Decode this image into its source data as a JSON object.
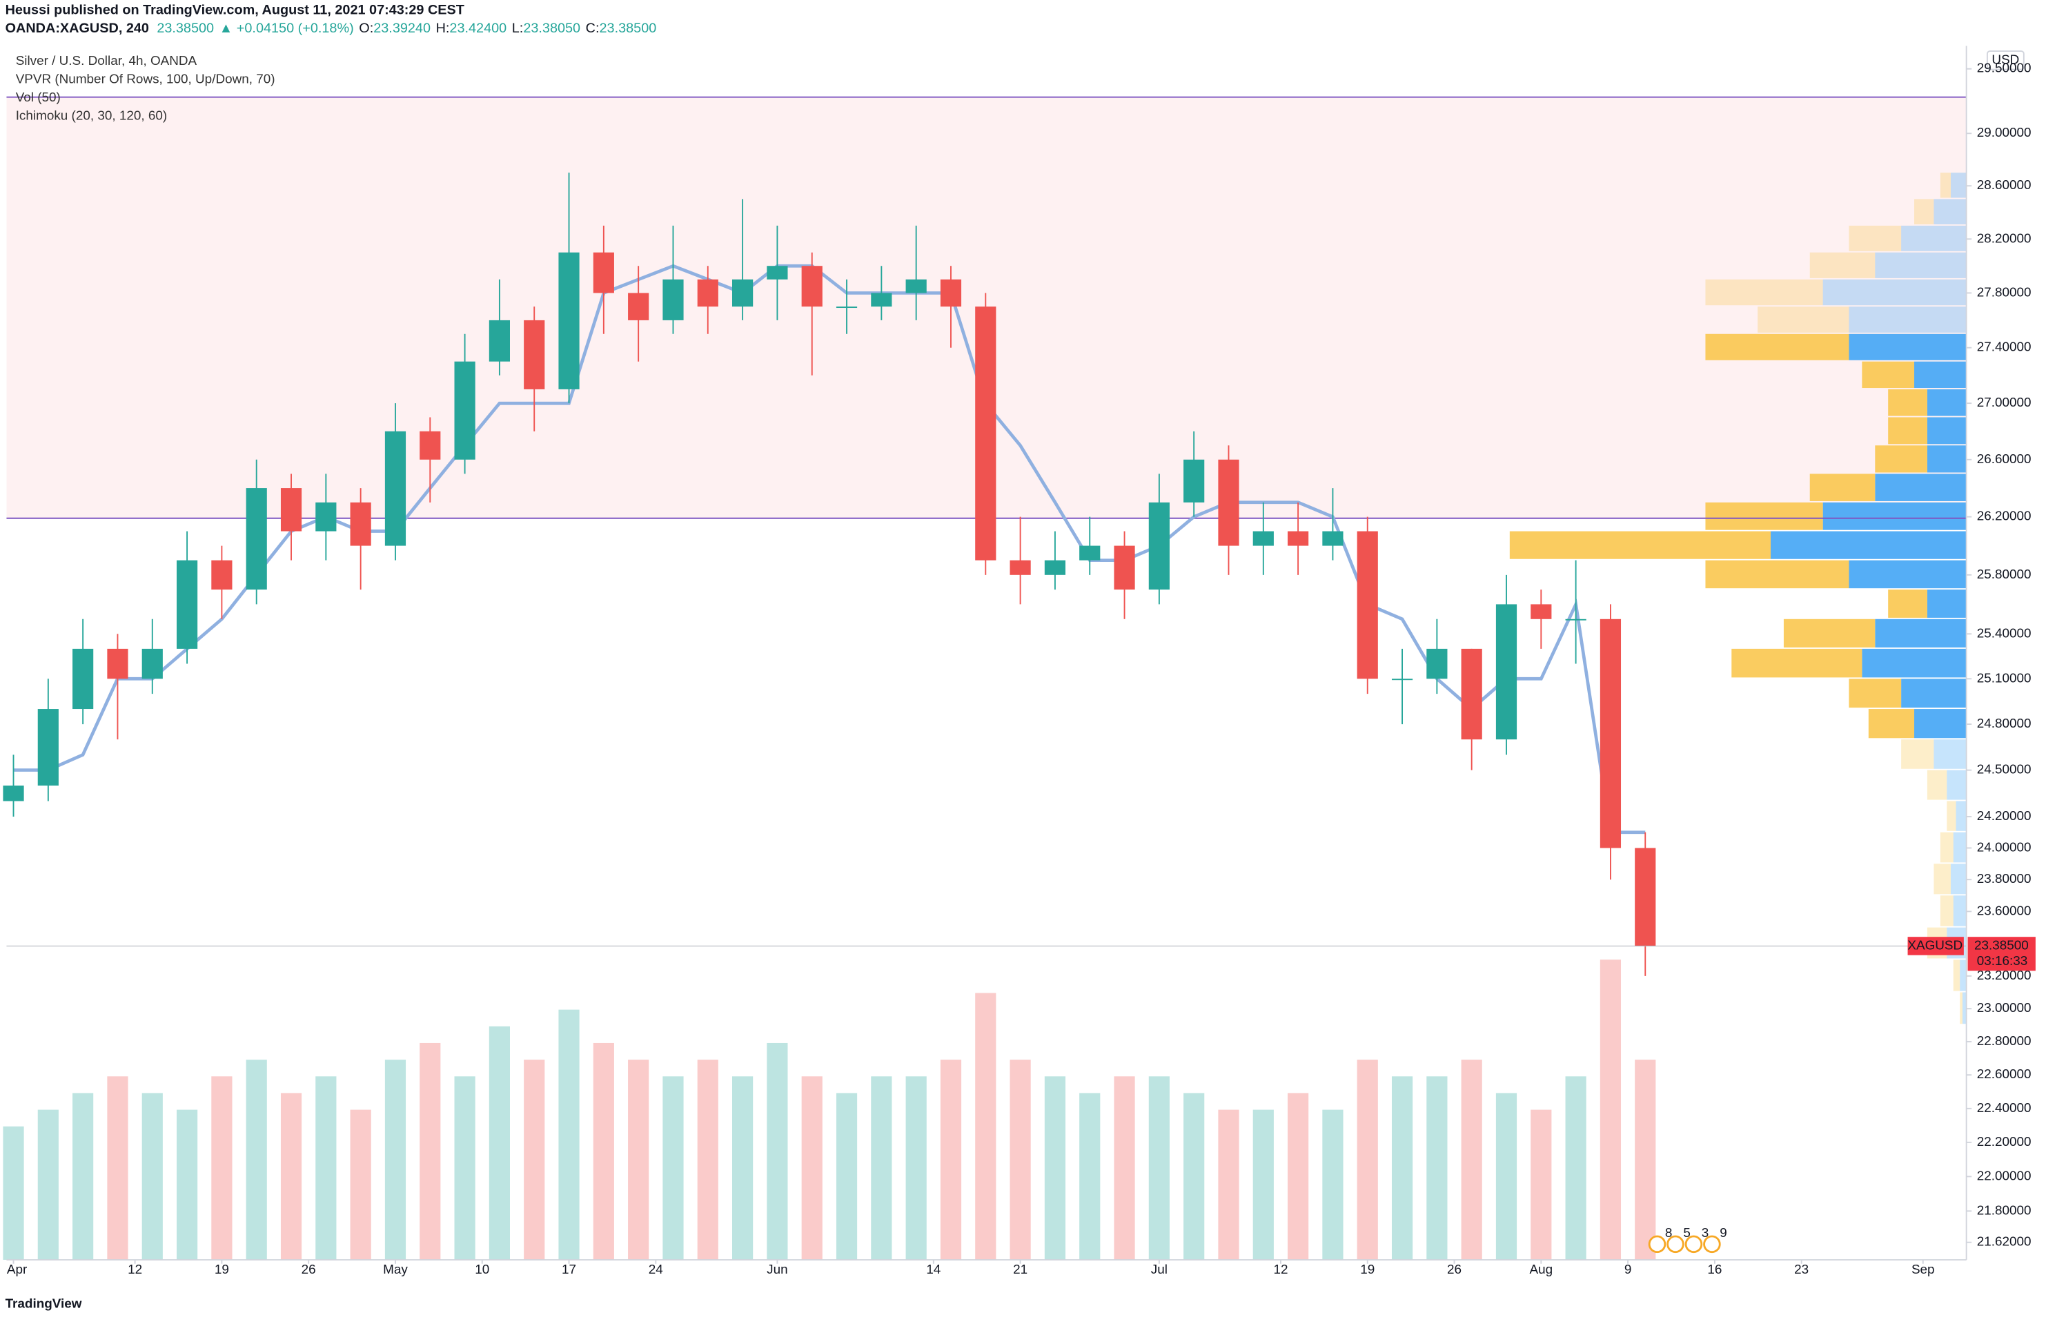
{
  "header": {
    "published": "Heussi published on TradingView.com, August 11, 2021 07:43:29 CEST",
    "symbol": "OANDA:XAGUSD, 240",
    "price": "23.38500",
    "change": "▲ +0.04150 (+0.18%)",
    "ohlc": [
      "O:",
      "23.39240",
      "H:",
      "23.42400",
      "L:",
      "23.38050",
      "C:",
      "23.38500"
    ]
  },
  "chart_data": {
    "type": "candlestick",
    "title": "Silver / U.S. Dollar, 4h, OANDA",
    "indicators": [
      "VPVR (Number Of Rows, 100, Up/Down, 70)",
      "Vol (50)",
      "Ichimoku (20, 30, 120, 60)"
    ],
    "currency": "USD",
    "log_scale": true,
    "grid": false,
    "up_color": "#26a69a",
    "down_color": "#ef5350",
    "xlim": [
      -0.4,
      112.5
    ],
    "xticks": [
      {
        "value": 0,
        "label": "Apr"
      },
      {
        "value": 7,
        "label": "12"
      },
      {
        "value": 12,
        "label": "19"
      },
      {
        "value": 17,
        "label": "26"
      },
      {
        "value": 22,
        "label": "May"
      },
      {
        "value": 27,
        "label": "10"
      },
      {
        "value": 32,
        "label": "17"
      },
      {
        "value": 37,
        "label": "24"
      },
      {
        "value": 44,
        "label": "Jun"
      },
      {
        "value": 53,
        "label": "14"
      },
      {
        "value": 58,
        "label": "21"
      },
      {
        "value": 66,
        "label": "Jul"
      },
      {
        "value": 73,
        "label": "12"
      },
      {
        "value": 78,
        "label": "19"
      },
      {
        "value": 83,
        "label": "26"
      },
      {
        "value": 88,
        "label": "Aug"
      },
      {
        "value": 93,
        "label": "9"
      },
      {
        "value": 98,
        "label": "16"
      },
      {
        "value": 103,
        "label": "23"
      },
      {
        "value": 110,
        "label": "Sep"
      }
    ],
    "ylim": [
      21.52,
      29.68
    ],
    "yticks": [
      {
        "value": 29.5,
        "label": "29.50000"
      },
      {
        "value": 29,
        "label": "29.00000"
      },
      {
        "value": 28.6,
        "label": "28.60000"
      },
      {
        "value": 28.2,
        "label": "28.20000"
      },
      {
        "value": 27.8,
        "label": "27.80000"
      },
      {
        "value": 27.4,
        "label": "27.40000"
      },
      {
        "value": 27,
        "label": "27.00000"
      },
      {
        "value": 26.6,
        "label": "26.60000"
      },
      {
        "value": 26.2,
        "label": "26.20000"
      },
      {
        "value": 25.8,
        "label": "25.80000"
      },
      {
        "value": 25.4,
        "label": "25.40000"
      },
      {
        "value": 25.1,
        "label": "25.10000"
      },
      {
        "value": 24.8,
        "label": "24.80000"
      },
      {
        "value": 24.5,
        "label": "24.50000"
      },
      {
        "value": 24.2,
        "label": "24.20000"
      },
      {
        "value": 24,
        "label": "24.00000"
      },
      {
        "value": 23.8,
        "label": "23.80000"
      },
      {
        "value": 23.6,
        "label": "23.60000"
      },
      {
        "value": 23.2,
        "label": "23.20000"
      },
      {
        "value": 23,
        "label": "23.00000"
      },
      {
        "value": 22.8,
        "label": "22.80000"
      },
      {
        "value": 22.6,
        "label": "22.60000"
      },
      {
        "value": 22.4,
        "label": "22.40000"
      },
      {
        "value": 22.2,
        "label": "22.20000"
      },
      {
        "value": 22,
        "label": "22.00000"
      },
      {
        "value": 21.8,
        "label": "21.80000"
      },
      {
        "value": 21.62,
        "label": "21.62000"
      }
    ],
    "levels": [
      29.28,
      26.19
    ],
    "level_color": "#7e57c2",
    "zone_color": "#f23645",
    "x": [
      0,
      2,
      4,
      6,
      8,
      10,
      12,
      14,
      16,
      18,
      20,
      22,
      24,
      26,
      28,
      30,
      32,
      34,
      36,
      38,
      40,
      42,
      44,
      46,
      48,
      50,
      52,
      54,
      56,
      58,
      60,
      62,
      64,
      66,
      68,
      70,
      72,
      74,
      76,
      78,
      80,
      82,
      84,
      86,
      88,
      90,
      92,
      94
    ],
    "open": [
      24.3,
      24.4,
      24.9,
      25.3,
      25.1,
      25.3,
      25.9,
      25.7,
      26.4,
      26.1,
      26.3,
      26.0,
      26.8,
      26.6,
      27.3,
      27.6,
      27.1,
      28.1,
      27.8,
      27.6,
      27.9,
      27.7,
      27.9,
      28.0,
      27.7,
      27.7,
      27.8,
      27.9,
      27.7,
      25.9,
      25.8,
      25.9,
      26.0,
      25.7,
      26.3,
      26.6,
      26.0,
      26.1,
      26.0,
      26.1,
      25.1,
      25.1,
      25.3,
      24.7,
      25.6,
      25.5,
      25.5,
      24.0
    ],
    "high": [
      24.6,
      25.1,
      25.5,
      25.4,
      25.5,
      26.1,
      26.0,
      26.6,
      26.5,
      26.5,
      26.4,
      27.0,
      26.9,
      27.5,
      27.9,
      27.7,
      28.7,
      28.3,
      28.0,
      28.3,
      28.0,
      28.5,
      28.3,
      28.1,
      27.9,
      28.0,
      28.3,
      28.0,
      27.8,
      26.2,
      26.1,
      26.2,
      26.1,
      26.5,
      26.8,
      26.7,
      26.3,
      26.3,
      26.4,
      26.2,
      25.3,
      25.5,
      25.3,
      25.8,
      25.7,
      25.9,
      25.6,
      24.1
    ],
    "low": [
      24.2,
      24.3,
      24.8,
      24.7,
      25.0,
      25.2,
      25.5,
      25.6,
      25.9,
      25.9,
      25.7,
      25.9,
      26.3,
      26.5,
      27.2,
      26.8,
      27.0,
      27.5,
      27.3,
      27.5,
      27.5,
      27.6,
      27.6,
      27.2,
      27.5,
      27.6,
      27.6,
      27.4,
      25.8,
      25.6,
      25.7,
      25.8,
      25.5,
      25.6,
      26.2,
      25.8,
      25.8,
      25.8,
      25.9,
      25.0,
      24.8,
      25.0,
      24.5,
      24.6,
      25.3,
      25.2,
      23.8,
      23.2
    ],
    "close": [
      24.4,
      24.9,
      25.3,
      25.1,
      25.3,
      25.9,
      25.7,
      26.4,
      26.1,
      26.3,
      26.0,
      26.8,
      26.6,
      27.3,
      27.6,
      27.1,
      28.1,
      27.8,
      27.6,
      27.9,
      27.7,
      27.9,
      28.0,
      27.7,
      27.7,
      27.8,
      27.9,
      27.7,
      25.9,
      25.8,
      25.9,
      26.0,
      25.7,
      26.3,
      26.6,
      26.0,
      26.1,
      26.0,
      26.1,
      25.1,
      25.1,
      25.3,
      24.7,
      25.6,
      25.5,
      25.5,
      24.0,
      23.385
    ],
    "volume": [
      40,
      45,
      50,
      55,
      50,
      45,
      55,
      60,
      50,
      55,
      45,
      60,
      65,
      55,
      70,
      60,
      75,
      65,
      60,
      55,
      60,
      55,
      65,
      55,
      50,
      55,
      55,
      60,
      80,
      60,
      55,
      50,
      55,
      55,
      50,
      45,
      45,
      50,
      45,
      60,
      55,
      55,
      60,
      50,
      45,
      55,
      90,
      60
    ],
    "baseline": {
      "color": "#8fb0e0",
      "values": [
        24.5,
        24.5,
        24.6,
        25.1,
        25.1,
        25.3,
        25.5,
        25.8,
        26.1,
        26.2,
        26.1,
        26.1,
        26.4,
        26.7,
        27.0,
        27.0,
        27.0,
        27.8,
        27.9,
        28.0,
        27.9,
        27.8,
        28.0,
        28.0,
        27.8,
        27.8,
        27.8,
        27.8,
        27.0,
        26.7,
        26.3,
        25.9,
        25.9,
        26.0,
        26.2,
        26.3,
        26.3,
        26.3,
        26.2,
        25.6,
        25.5,
        25.1,
        24.9,
        25.1,
        25.1,
        25.6,
        24.1,
        24.1
      ]
    },
    "vpvr": {
      "up_color": "#42a5f5",
      "down_color": "#f9c74f",
      "value_area": [
        24.8,
        27.4
      ],
      "prices": [
        28.6,
        28.4,
        28.2,
        28.0,
        27.8,
        27.6,
        27.4,
        27.2,
        27.0,
        26.8,
        26.6,
        26.4,
        26.2,
        26.0,
        25.8,
        25.6,
        25.4,
        25.2,
        25.0,
        24.8,
        24.6,
        24.4,
        24.2,
        24.0,
        23.8,
        23.6,
        23.4,
        23.2,
        23.0
      ],
      "up": [
        12,
        25,
        50,
        70,
        110,
        90,
        90,
        40,
        30,
        30,
        30,
        70,
        110,
        150,
        90,
        30,
        70,
        80,
        50,
        40,
        25,
        15,
        8,
        10,
        12,
        10,
        15,
        5,
        3
      ],
      "down": [
        8,
        15,
        40,
        50,
        90,
        70,
        110,
        40,
        30,
        30,
        40,
        50,
        90,
        200,
        110,
        30,
        70,
        100,
        40,
        35,
        25,
        15,
        7,
        10,
        13,
        10,
        15,
        5,
        2
      ]
    },
    "last": {
      "value": 23.385,
      "label": "23.38500",
      "symbol": "XAGUSD",
      "countdown": "03:16:33",
      "color": "#f23645"
    },
    "events": [
      "8",
      "5",
      "3",
      "9"
    ]
  },
  "footer": {
    "logo": "TradingView"
  }
}
